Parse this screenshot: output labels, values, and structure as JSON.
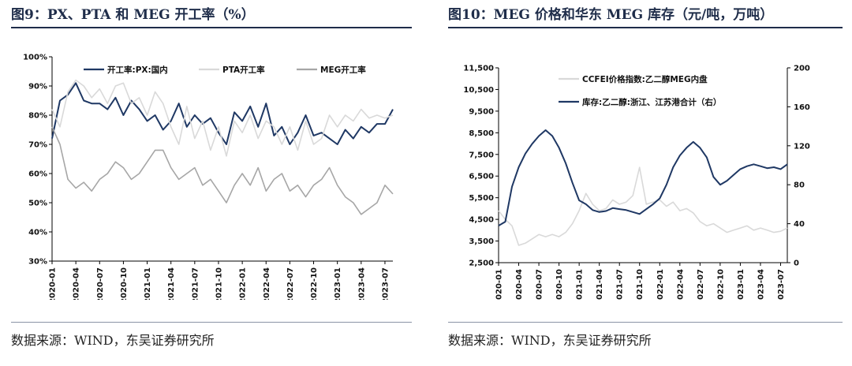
{
  "panels": [
    {
      "fig_title": "图9：PX、PTA 和 MEG 开工率（%）",
      "source": "数据来源：WIND，东吴证券研究所"
    },
    {
      "fig_title": "图10：MEG 价格和华东 MEG 库存（元/吨，万吨）",
      "source": "数据来源：WIND，东吴证券研究所"
    }
  ],
  "chart_data": [
    {
      "type": "line",
      "title": "PX、PTA 和 MEG 开工率（%）",
      "y_ticks": [
        "100%",
        "90%",
        "80%",
        "70%",
        "60%",
        "50%",
        "40%",
        "30%"
      ],
      "ylim": [
        30,
        100
      ],
      "y_unit": "%",
      "x_ticks": [
        "2020-01",
        "2020-04",
        "2020-07",
        "2020-10",
        "2021-01",
        "2021-04",
        "2021-07",
        "2021-10",
        "2022-01",
        "2022-04",
        "2022-07",
        "2022-10",
        "2023-01",
        "2023-04",
        "2023-07"
      ],
      "x_range": [
        "2020-01",
        "2023-08"
      ],
      "legend_position": "top",
      "grid": false,
      "series": [
        {
          "name": "开工率:PX:国内",
          "color": "#1f3864",
          "width": 2.0,
          "x": [
            "2020-01",
            "2020-02",
            "2020-03",
            "2020-04",
            "2020-05",
            "2020-06",
            "2020-07",
            "2020-08",
            "2020-09",
            "2020-10",
            "2020-11",
            "2020-12",
            "2021-01",
            "2021-02",
            "2021-03",
            "2021-04",
            "2021-05",
            "2021-06",
            "2021-07",
            "2021-08",
            "2021-09",
            "2021-10",
            "2021-11",
            "2021-12",
            "2022-01",
            "2022-02",
            "2022-03",
            "2022-04",
            "2022-05",
            "2022-06",
            "2022-07",
            "2022-08",
            "2022-09",
            "2022-10",
            "2022-11",
            "2022-12",
            "2023-01",
            "2023-02",
            "2023-03",
            "2023-04",
            "2023-05",
            "2023-06",
            "2023-07",
            "2023-08"
          ],
          "values": [
            72,
            85,
            87,
            91,
            85,
            84,
            84,
            82,
            86,
            80,
            85,
            82,
            78,
            80,
            75,
            78,
            84,
            76,
            80,
            77,
            79,
            74,
            70,
            81,
            78,
            83,
            76,
            84,
            73,
            76,
            70,
            74,
            80,
            73,
            74,
            72,
            70,
            75,
            72,
            76,
            74,
            77,
            77,
            82
          ]
        },
        {
          "name": "PTA开工率",
          "color": "#d9d9d9",
          "width": 1.6,
          "x": [
            "2020-01",
            "2020-02",
            "2020-03",
            "2020-04",
            "2020-05",
            "2020-06",
            "2020-07",
            "2020-08",
            "2020-09",
            "2020-10",
            "2020-11",
            "2020-12",
            "2021-01",
            "2021-02",
            "2021-03",
            "2021-04",
            "2021-05",
            "2021-06",
            "2021-07",
            "2021-08",
            "2021-09",
            "2021-10",
            "2021-11",
            "2021-12",
            "2022-01",
            "2022-02",
            "2022-03",
            "2022-04",
            "2022-05",
            "2022-06",
            "2022-07",
            "2022-08",
            "2022-09",
            "2022-10",
            "2022-11",
            "2022-12",
            "2023-01",
            "2023-02",
            "2023-03",
            "2023-04",
            "2023-05",
            "2023-06",
            "2023-07",
            "2023-08"
          ],
          "values": [
            82,
            76,
            88,
            92,
            90,
            86,
            89,
            84,
            90,
            91,
            84,
            86,
            80,
            88,
            84,
            76,
            70,
            83,
            72,
            78,
            68,
            76,
            66,
            78,
            74,
            80,
            72,
            78,
            76,
            70,
            76,
            68,
            78,
            70,
            72,
            80,
            76,
            80,
            78,
            82,
            79,
            80,
            79,
            80
          ]
        },
        {
          "name": "MEG开工率",
          "color": "#a6a6a6",
          "width": 1.6,
          "x": [
            "2020-01",
            "2020-02",
            "2020-03",
            "2020-04",
            "2020-05",
            "2020-06",
            "2020-07",
            "2020-08",
            "2020-09",
            "2020-10",
            "2020-11",
            "2020-12",
            "2021-01",
            "2021-02",
            "2021-03",
            "2021-04",
            "2021-05",
            "2021-06",
            "2021-07",
            "2021-08",
            "2021-09",
            "2021-10",
            "2021-11",
            "2021-12",
            "2022-01",
            "2022-02",
            "2022-03",
            "2022-04",
            "2022-05",
            "2022-06",
            "2022-07",
            "2022-08",
            "2022-09",
            "2022-10",
            "2022-11",
            "2022-12",
            "2023-01",
            "2023-02",
            "2023-03",
            "2023-04",
            "2023-05",
            "2023-06",
            "2023-07",
            "2023-08"
          ],
          "values": [
            76,
            70,
            58,
            55,
            57,
            54,
            58,
            60,
            64,
            62,
            58,
            60,
            64,
            68,
            68,
            62,
            58,
            60,
            62,
            56,
            58,
            54,
            50,
            56,
            60,
            56,
            62,
            54,
            58,
            60,
            54,
            56,
            52,
            56,
            58,
            62,
            56,
            52,
            50,
            46,
            48,
            50,
            56,
            53
          ]
        }
      ]
    },
    {
      "type": "line",
      "title": "MEG 价格和华东 MEG 库存（元/吨，万吨）",
      "y_ticks_left": [
        "11,500",
        "10,500",
        "9,500",
        "8,500",
        "7,500",
        "6,500",
        "5,500",
        "4,500",
        "3,500",
        "2,500"
      ],
      "ylim_left": [
        2500,
        11500
      ],
      "y_ticks_right": [
        "200",
        "160",
        "120",
        "80",
        "40",
        "0"
      ],
      "ylim_right": [
        0,
        200
      ],
      "x_ticks": [
        "2020-01",
        "2020-04",
        "2020-07",
        "2020-10",
        "2021-01",
        "2021-04",
        "2021-07",
        "2021-10",
        "2022-01",
        "2022-04",
        "2022-07",
        "2022-10",
        "2023-01",
        "2023-04",
        "2023-07"
      ],
      "x_range": [
        "2020-01",
        "2023-08"
      ],
      "legend_position": "top-left",
      "grid": false,
      "series": [
        {
          "name": "CCFEI价格指数:乙二醇MEG内盘",
          "axis": "left",
          "color": "#d9d9d9",
          "width": 1.6,
          "x": [
            "2020-01",
            "2020-02",
            "2020-03",
            "2020-04",
            "2020-05",
            "2020-06",
            "2020-07",
            "2020-08",
            "2020-09",
            "2020-10",
            "2020-11",
            "2020-12",
            "2021-01",
            "2021-02",
            "2021-03",
            "2021-04",
            "2021-05",
            "2021-06",
            "2021-07",
            "2021-08",
            "2021-09",
            "2021-10",
            "2021-11",
            "2021-12",
            "2022-01",
            "2022-02",
            "2022-03",
            "2022-04",
            "2022-05",
            "2022-06",
            "2022-07",
            "2022-08",
            "2022-09",
            "2022-10",
            "2022-11",
            "2022-12",
            "2023-01",
            "2023-02",
            "2023-03",
            "2023-04",
            "2023-05",
            "2023-06",
            "2023-07",
            "2023-08"
          ],
          "values": [
            4900,
            4500,
            4200,
            3300,
            3400,
            3600,
            3800,
            3700,
            3800,
            3700,
            3900,
            4300,
            4900,
            5700,
            5200,
            4900,
            5000,
            5400,
            5200,
            5300,
            5600,
            6900,
            5200,
            5300,
            5400,
            5100,
            5300,
            4900,
            5000,
            4800,
            4400,
            4200,
            4300,
            4100,
            3900,
            4000,
            4100,
            4200,
            4000,
            4100,
            4000,
            3900,
            3950,
            4100
          ]
        },
        {
          "name": "库存:乙二醇:浙江、江苏港合计（右）",
          "axis": "right",
          "color": "#1f3864",
          "width": 2.0,
          "x": [
            "2020-01",
            "2020-02",
            "2020-03",
            "2020-04",
            "2020-05",
            "2020-06",
            "2020-07",
            "2020-08",
            "2020-09",
            "2020-10",
            "2020-11",
            "2020-12",
            "2021-01",
            "2021-02",
            "2021-03",
            "2021-04",
            "2021-05",
            "2021-06",
            "2021-07",
            "2021-08",
            "2021-09",
            "2021-10",
            "2021-11",
            "2021-12",
            "2022-01",
            "2022-02",
            "2022-03",
            "2022-04",
            "2022-05",
            "2022-06",
            "2022-07",
            "2022-08",
            "2022-09",
            "2022-10",
            "2022-11",
            "2022-12",
            "2023-01",
            "2023-02",
            "2023-03",
            "2023-04",
            "2023-05",
            "2023-06",
            "2023-07",
            "2023-08"
          ],
          "values": [
            38,
            42,
            78,
            98,
            112,
            122,
            130,
            136,
            130,
            118,
            102,
            82,
            64,
            60,
            54,
            52,
            53,
            56,
            55,
            54,
            52,
            50,
            55,
            60,
            66,
            80,
            98,
            110,
            118,
            124,
            118,
            108,
            88,
            80,
            84,
            90,
            96,
            99,
            101,
            99,
            97,
            98,
            96,
            101
          ]
        }
      ]
    }
  ]
}
